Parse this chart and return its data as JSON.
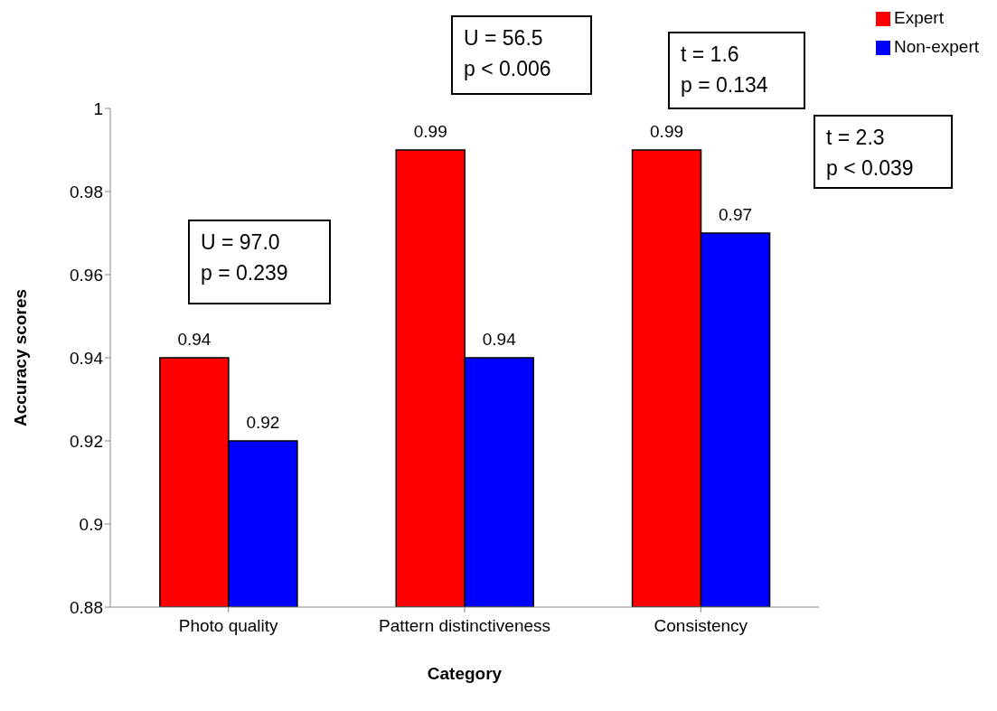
{
  "chart_data": {
    "type": "bar",
    "xlabel": "Category",
    "ylabel": "Accuracy scores",
    "categories": [
      "Photo quality",
      "Pattern distinctiveness",
      "Consistency"
    ],
    "series": [
      {
        "name": "Expert",
        "color": "#ff0000",
        "values": [
          0.94,
          0.99,
          0.99
        ]
      },
      {
        "name": "Non-expert",
        "color": "#0000ff",
        "values": [
          0.92,
          0.94,
          0.97
        ]
      }
    ],
    "ylim": [
      0.88,
      1
    ],
    "yticks": [
      0.88,
      0.9,
      0.92,
      0.94,
      0.96,
      0.98,
      1
    ],
    "grid": false,
    "legend": "top right",
    "data_labels": true,
    "annotations": [
      "U = 97.0\np = 0.239",
      "U = 56.5\np < 0.006",
      "t = 1.6\np = 0.134",
      "t = 2.3\np < 0.039"
    ]
  }
}
